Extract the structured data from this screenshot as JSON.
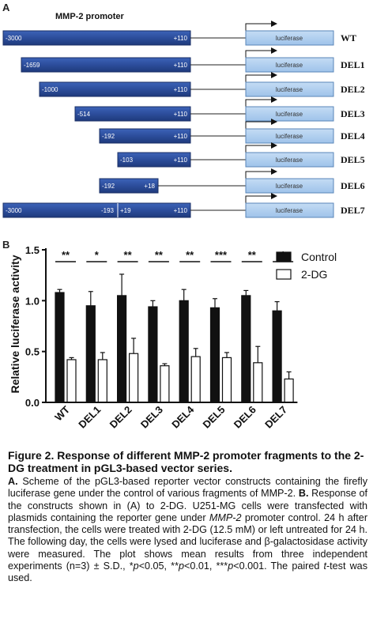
{
  "panel_a": {
    "letter": "A",
    "title": "MMP-2 promoter",
    "reporter_label": "luciferase",
    "constructs": [
      {
        "name": "WT",
        "start": "-3000",
        "end": "+110"
      },
      {
        "name": "DEL1",
        "start": "-1659",
        "end": "+110"
      },
      {
        "name": "DEL2",
        "start": "-1000",
        "end": "+110"
      },
      {
        "name": "DEL3",
        "start": "-514",
        "end": "+110"
      },
      {
        "name": "DEL4",
        "start": "-192",
        "end": "+110"
      },
      {
        "name": "DEL5",
        "start": "-103",
        "end": "+110"
      },
      {
        "name": "DEL6",
        "start": "-192",
        "end": "+18"
      },
      {
        "name": "DEL7",
        "start": "-3000",
        "mid_left": "-193",
        "mid_right": "+19",
        "end": "+110"
      }
    ],
    "colors": {
      "promoter": "#2c4d9b",
      "promoter_edge": "#1a2f66",
      "luciferase": "#a9cbee",
      "luciferase_edge": "#5a86b8"
    }
  },
  "chart_data": {
    "type": "bar",
    "panel_letter": "B",
    "categories": [
      "WT",
      "DEL1",
      "DEL2",
      "DEL3",
      "DEL4",
      "DEL5",
      "DEL6",
      "DEL7"
    ],
    "series": [
      {
        "name": "Control",
        "color": "#111111",
        "values": [
          1.08,
          0.95,
          1.05,
          0.94,
          1.0,
          0.93,
          1.05,
          0.9
        ],
        "errors": [
          0.03,
          0.14,
          0.21,
          0.06,
          0.11,
          0.09,
          0.05,
          0.09
        ]
      },
      {
        "name": "2-DG",
        "color": "#ffffff",
        "values": [
          0.42,
          0.42,
          0.48,
          0.36,
          0.45,
          0.44,
          0.39,
          0.23
        ],
        "errors": [
          0.02,
          0.07,
          0.15,
          0.02,
          0.08,
          0.05,
          0.16,
          0.07
        ]
      }
    ],
    "significance": [
      "**",
      "*",
      "**",
      "**",
      "**",
      "***",
      "**",
      "*"
    ],
    "ylabel": "Relative luciferase activity",
    "xlabel": "",
    "ylim": [
      0,
      1.5
    ],
    "yticks": [
      "0.0",
      "0.5",
      "1.0",
      "1.5"
    ],
    "legend_placement": "top-right",
    "grid": false
  },
  "caption": {
    "title": "Figure 2. Response of different MMP-2 promoter fragments to the 2-DG treatment in pGL3-based vector series.",
    "a_label": "A.",
    "a_text": "Scheme of the pGL3-based reporter vector constructs containing the firefly luciferase gene under the control of various fragments of MMP-2.",
    "b_label": "B.",
    "b_text_1": "Response of the constructs shown in (A) to 2-DG. U251-MG cells were transfected with plasmids containing the reporter gene under",
    "b_gene": "MMP-2",
    "b_text_2": "promoter control. 24 h after transfection, the cells were treated with 2-DG (12.5 mM) or left untreated for 24 h. The following day, the cells were lysed and luciferase and β-galactosidase activity were measured. The plot shows mean results from three independent experiments (n=3) ± S.D., *",
    "p1": "p",
    "t1": "<0.05, **",
    "p2": "p",
    "t2": "<0.01, ***",
    "p3": "p",
    "t3": "<0.001. The paired",
    "t_italic": "t",
    "t_end": "-test was used."
  }
}
